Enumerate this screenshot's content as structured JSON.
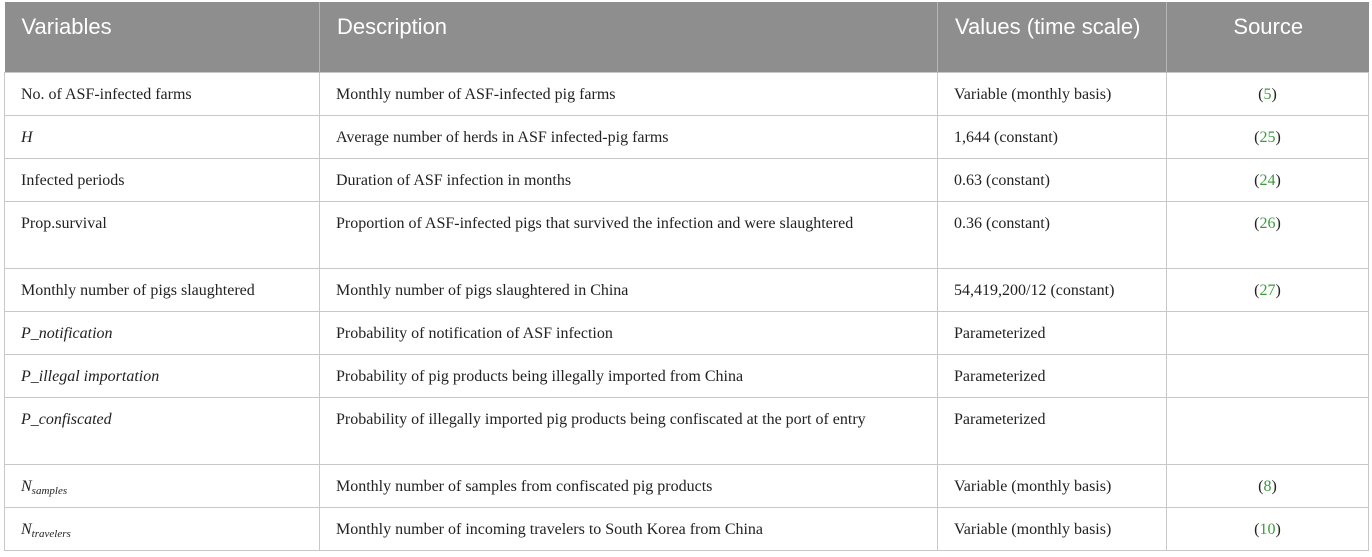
{
  "header": {
    "variables": "Variables",
    "description": "Description",
    "values": "Values (time scale)",
    "source": "Source"
  },
  "rows": [
    {
      "variable": "No. of ASF-infected farms",
      "description": "Monthly number of ASF-infected pig farms",
      "value": "Variable (monthly basis)",
      "source": "5"
    },
    {
      "variable": "H",
      "description": "Average number of herds in ASF infected-pig farms",
      "value": "1,644 (constant)",
      "source": "25"
    },
    {
      "variable": "Infected periods",
      "description": "Duration of ASF infection in months",
      "value": "0.63 (constant)",
      "source": "24"
    },
    {
      "variable": "Prop.survival",
      "description": "Proportion of ASF-infected pigs that survived the infection and were slaughtered",
      "value": "0.36 (constant)",
      "source": "26"
    },
    {
      "variable": "Monthly number of pigs slaughtered",
      "description": "Monthly number of pigs slaughtered in China",
      "value": "54,419,200/12 (constant)",
      "source": "27"
    },
    {
      "variable": "P_notification",
      "description": "Probability of notification of ASF infection",
      "value": "Parameterized",
      "source": ""
    },
    {
      "variable": "P_illegal importation",
      "description": "Probability of pig products being illegally imported from China",
      "value": "Parameterized",
      "source": ""
    },
    {
      "variable": "P_confiscated",
      "description": "Probability of illegally imported pig products being confiscated at the port of entry",
      "value": "Parameterized",
      "source": ""
    },
    {
      "variable_main": "N",
      "variable_sub": "samples",
      "description": "Monthly number of samples from confiscated pig products",
      "value": "Variable (monthly basis)",
      "source": "8"
    },
    {
      "variable_main": "N",
      "variable_sub": "travelers",
      "description": "Monthly number of incoming travelers to South Korea from China",
      "value": "Variable (monthly basis)",
      "source": "10"
    }
  ]
}
